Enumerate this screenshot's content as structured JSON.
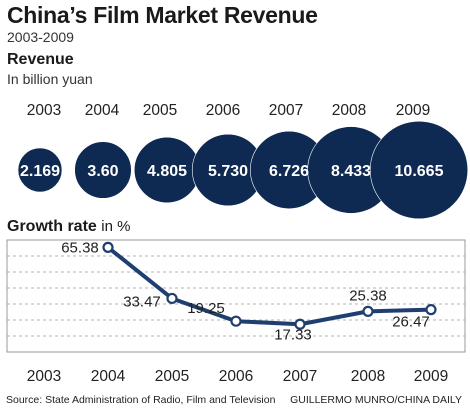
{
  "header": {
    "title": "China’s Film Market Revenue",
    "subtitle": "2003-2009"
  },
  "footer": {
    "source": "Source: State Administration of Radio, Film and Television",
    "credit": "GUILLERMO MUNRO/CHINA DAILY"
  },
  "colors": {
    "bubble": "#0e2a52",
    "bubble_stroke": "#ffffff",
    "line": "#1f3f70",
    "grid": "#9a9a9a"
  },
  "chart_data": [
    {
      "type": "bubble",
      "title": "Revenue",
      "unit_label": "In billion yuan",
      "categories": [
        "2003",
        "2004",
        "2005",
        "2006",
        "2007",
        "2008",
        "2009"
      ],
      "values": [
        2.169,
        3.6,
        4.805,
        5.73,
        6.726,
        8.433,
        10.665
      ],
      "value_labels": [
        "2.169",
        "3.60",
        "4.805",
        "5.730",
        "6.726",
        "8.433",
        "10.665"
      ]
    },
    {
      "type": "line",
      "title": "Growth rate",
      "unit_label": "in %",
      "categories": [
        "2003",
        "2004",
        "2005",
        "2006",
        "2007",
        "2008",
        "2009"
      ],
      "x": [
        "2004",
        "2005",
        "2006",
        "2007",
        "2008",
        "2009"
      ],
      "values": [
        65.38,
        33.47,
        19.25,
        17.33,
        25.38,
        26.47
      ],
      "value_labels": [
        "65.38",
        "33.47",
        "19.25",
        "17.33",
        "25.38",
        "26.47"
      ],
      "ylim": [
        0,
        70
      ],
      "grid": true
    }
  ]
}
